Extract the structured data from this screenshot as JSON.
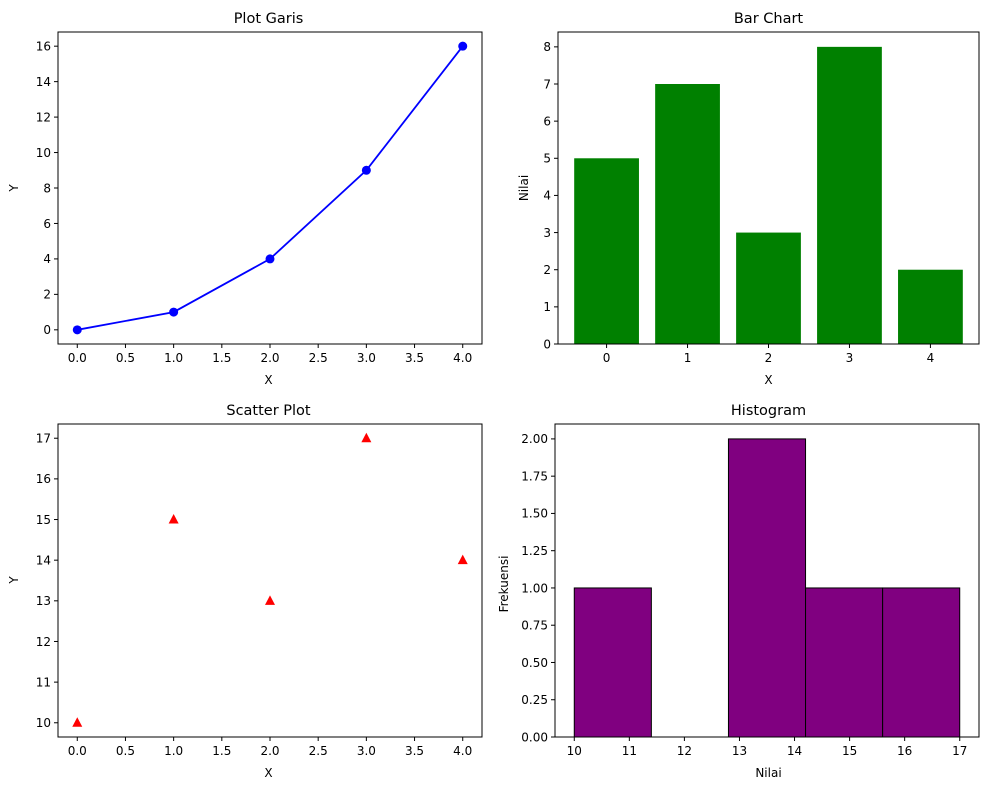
{
  "chart_data": [
    {
      "type": "line",
      "title": "Plot Garis",
      "xlabel": "X",
      "ylabel": "Y",
      "x": [
        0,
        1,
        2,
        3,
        4
      ],
      "series": [
        {
          "values": [
            0,
            1,
            4,
            9,
            16
          ],
          "color": "#0000ff",
          "marker": "circle"
        }
      ],
      "xlim": [
        -0.2,
        4.2
      ],
      "ylim": [
        -0.8,
        16.8
      ],
      "xticks": [
        0.0,
        0.5,
        1.0,
        1.5,
        2.0,
        2.5,
        3.0,
        3.5,
        4.0
      ],
      "xtick_labels": [
        "0.0",
        "0.5",
        "1.0",
        "1.5",
        "2.0",
        "2.5",
        "3.0",
        "3.5",
        "4.0"
      ],
      "yticks": [
        0,
        2,
        4,
        6,
        8,
        10,
        12,
        14,
        16
      ],
      "ytick_labels": [
        "0",
        "2",
        "4",
        "6",
        "8",
        "10",
        "12",
        "14",
        "16"
      ],
      "grid": false
    },
    {
      "type": "bar",
      "title": "Bar Chart",
      "xlabel": "X",
      "ylabel": "Nilai",
      "categories": [
        "0",
        "1",
        "2",
        "3",
        "4"
      ],
      "values": [
        5,
        7,
        3,
        8,
        2
      ],
      "color": "#008000",
      "xlim": [
        -0.6,
        4.6
      ],
      "ylim": [
        0,
        8.4
      ],
      "yticks": [
        0,
        1,
        2,
        3,
        4,
        5,
        6,
        7,
        8
      ],
      "ytick_labels": [
        "0",
        "1",
        "2",
        "3",
        "4",
        "5",
        "6",
        "7",
        "8"
      ],
      "grid": false
    },
    {
      "type": "scatter",
      "title": "Scatter Plot",
      "xlabel": "X",
      "ylabel": "Y",
      "x": [
        0,
        1,
        2,
        3,
        4
      ],
      "series": [
        {
          "values": [
            10,
            15,
            13,
            17,
            14
          ],
          "color": "#ff0000",
          "marker": "triangle"
        }
      ],
      "xlim": [
        -0.2,
        4.2
      ],
      "ylim": [
        9.65,
        17.35
      ],
      "xticks": [
        0.0,
        0.5,
        1.0,
        1.5,
        2.0,
        2.5,
        3.0,
        3.5,
        4.0
      ],
      "xtick_labels": [
        "0.0",
        "0.5",
        "1.0",
        "1.5",
        "2.0",
        "2.5",
        "3.0",
        "3.5",
        "4.0"
      ],
      "yticks": [
        10,
        11,
        12,
        13,
        14,
        15,
        16,
        17
      ],
      "ytick_labels": [
        "10",
        "11",
        "12",
        "13",
        "14",
        "15",
        "16",
        "17"
      ],
      "grid": false
    },
    {
      "type": "histogram",
      "title": "Histogram",
      "xlabel": "Nilai",
      "ylabel": "Frekuensi",
      "bin_edges": [
        10,
        11.4,
        12.8,
        14.2,
        15.6,
        17
      ],
      "counts": [
        1,
        0,
        2,
        1,
        1
      ],
      "color": "#800080",
      "edgecolor": "#000000",
      "xlim": [
        9.65,
        17.35
      ],
      "ylim": [
        0,
        2.1
      ],
      "xticks": [
        10,
        11,
        12,
        13,
        14,
        15,
        16,
        17
      ],
      "xtick_labels": [
        "10",
        "11",
        "12",
        "13",
        "14",
        "15",
        "16",
        "17"
      ],
      "yticks": [
        0,
        0.25,
        0.5,
        0.75,
        1.0,
        1.25,
        1.5,
        1.75,
        2.0
      ],
      "ytick_labels": [
        "0.00",
        "0.25",
        "0.50",
        "0.75",
        "1.00",
        "1.25",
        "1.50",
        "1.75",
        "2.00"
      ],
      "grid": false
    }
  ]
}
